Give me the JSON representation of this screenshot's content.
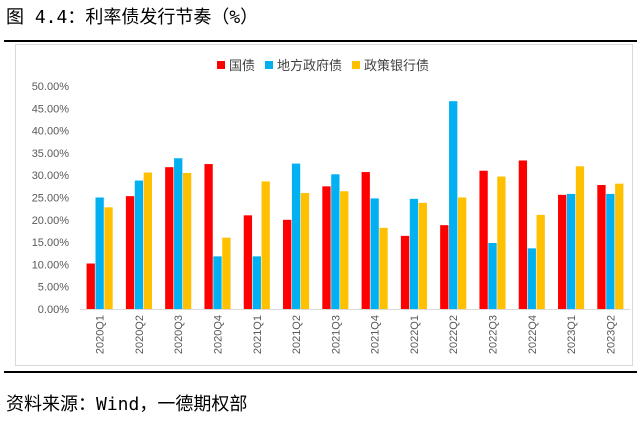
{
  "title": "图 4.4：利率债发行节奏（%）",
  "source": "资料来源：Wind，一德期权部",
  "chart_data": {
    "type": "bar",
    "title": "",
    "xlabel": "",
    "ylabel": "",
    "ylim": [
      0,
      50
    ],
    "y_ticks": [
      "0.00%",
      "5.00%",
      "10.00%",
      "15.00%",
      "20.00%",
      "25.00%",
      "30.00%",
      "35.00%",
      "40.00%",
      "45.00%",
      "50.00%"
    ],
    "categories": [
      "2020Q1",
      "2020Q2",
      "2020Q3",
      "2020Q4",
      "2021Q1",
      "2021Q2",
      "2021Q3",
      "2021Q4",
      "2022Q1",
      "2022Q2",
      "2022Q3",
      "2022Q4",
      "2023Q1",
      "2023Q2"
    ],
    "legend_position": "top-center",
    "grid": false,
    "series": [
      {
        "name": "国债",
        "color": "#ff0000",
        "values": [
          10.2,
          25.3,
          31.8,
          32.5,
          21.0,
          20.0,
          27.5,
          30.7,
          16.4,
          18.8,
          31.0,
          33.3,
          25.6,
          27.8
        ]
      },
      {
        "name": "地方政府债",
        "color": "#00b0f0",
        "values": [
          25.0,
          28.8,
          33.8,
          11.8,
          11.8,
          32.6,
          30.2,
          24.8,
          24.7,
          46.6,
          14.8,
          13.6,
          25.8,
          25.8
        ]
      },
      {
        "name": "政策银行债",
        "color": "#ffc000",
        "values": [
          22.8,
          30.6,
          30.5,
          16.0,
          28.6,
          26.0,
          26.4,
          18.2,
          23.8,
          25.0,
          29.7,
          21.1,
          32.0,
          28.1
        ]
      }
    ]
  }
}
